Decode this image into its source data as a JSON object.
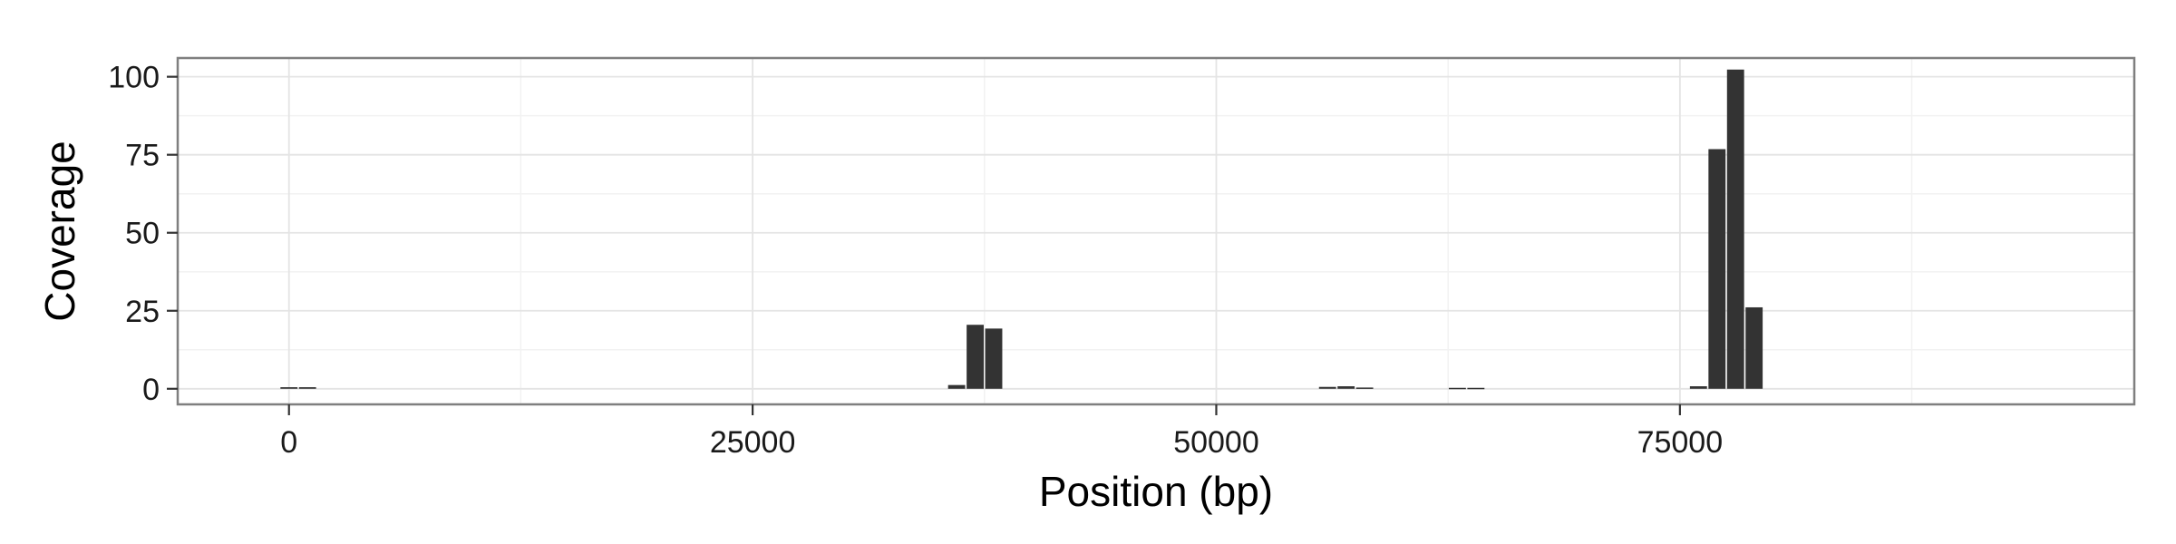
{
  "chart_data": {
    "type": "bar",
    "title": "",
    "xlabel": "Position (bp)",
    "ylabel": "Coverage",
    "xlim": [
      -6000,
      99500
    ],
    "ylim": [
      -5,
      106
    ],
    "x_ticks": [
      0,
      25000,
      50000,
      75000
    ],
    "x_tick_labels": [
      "0",
      "25000",
      "50000",
      "75000"
    ],
    "y_ticks": [
      0,
      25,
      50,
      75,
      100
    ],
    "y_tick_labels": [
      "0",
      "25",
      "50",
      "75",
      "100"
    ],
    "grid": true,
    "legend": "none",
    "bin_width": 1000,
    "bars": [
      {
        "x": 0,
        "y": 0.5
      },
      {
        "x": 1000,
        "y": 0.5
      },
      {
        "x": 36000,
        "y": 1.2
      },
      {
        "x": 37000,
        "y": 20.5
      },
      {
        "x": 38000,
        "y": 19.3
      },
      {
        "x": 56000,
        "y": 0.6
      },
      {
        "x": 57000,
        "y": 0.8
      },
      {
        "x": 58000,
        "y": 0.4
      },
      {
        "x": 63000,
        "y": 0.3
      },
      {
        "x": 64000,
        "y": 0.3
      },
      {
        "x": 76000,
        "y": 0.8
      },
      {
        "x": 77000,
        "y": 76.8
      },
      {
        "x": 78000,
        "y": 102.3
      },
      {
        "x": 79000,
        "y": 26.1
      }
    ],
    "colors": {
      "bar": "#333333",
      "panel_border": "#7f7f7f",
      "grid_major": "#e4e4e4",
      "grid_minor": "#f2f2f2",
      "tick": "#333333"
    }
  }
}
